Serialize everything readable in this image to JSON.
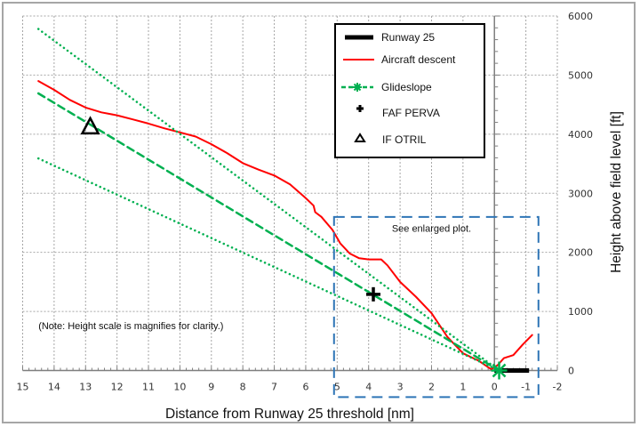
{
  "chart_data": {
    "type": "line",
    "title": "",
    "xlabel": "Distance from Runway 25 threshold [nm]",
    "ylabel": "Height above field level [ft]",
    "xlim": [
      15,
      -2
    ],
    "ylim": [
      0,
      6000
    ],
    "x_reversed": true,
    "y_axis_side": "right",
    "grid": true,
    "x_ticks": [
      15,
      14,
      13,
      12,
      11,
      10,
      9,
      8,
      7,
      6,
      5,
      4,
      3,
      2,
      1,
      0,
      -1,
      -2
    ],
    "x_tick_labels": [
      "15",
      "14",
      "13",
      "12",
      "11",
      "10",
      "9",
      "8",
      "7",
      "6",
      "5",
      "4",
      "3",
      "2",
      "1",
      "0",
      "-1",
      "-2"
    ],
    "y_ticks": [
      0,
      1000,
      2000,
      3000,
      4000,
      5000,
      6000
    ],
    "y_tick_labels": [
      "0",
      "1000",
      "2000",
      "3000",
      "4000",
      "5000",
      "6000"
    ],
    "legend": {
      "placement": "top-right",
      "entries": [
        {
          "label": "Runway 25",
          "style": "thick-black-line"
        },
        {
          "label": "Aircraft descent",
          "style": "red-line"
        },
        {
          "label": "Glideslope",
          "style": "green-dashed-asterisk"
        },
        {
          "label": "FAF PERVA",
          "style": "black-cross"
        },
        {
          "label": "IF OTRIL",
          "style": "black-triangle"
        }
      ]
    },
    "series": [
      {
        "name": "Runway 25",
        "color": "#000000",
        "x": [
          0,
          -1.1
        ],
        "y": [
          0,
          0
        ]
      },
      {
        "name": "Aircraft descent",
        "color": "#ff0000",
        "x": [
          14.5,
          14,
          13.5,
          13,
          12.5,
          12,
          11.5,
          11,
          10.5,
          10,
          9.5,
          9,
          8.5,
          8,
          7.5,
          7,
          6.5,
          6,
          5.75,
          5.7,
          5.5,
          5.15,
          4.9,
          4.6,
          4.3,
          4.0,
          3.6,
          3.4,
          3.0,
          2.5,
          2.0,
          1.5,
          1.0,
          0.5,
          0.1,
          -0.1,
          -0.3,
          -0.6,
          -0.9,
          -1.2
        ],
        "y": [
          4900,
          4750,
          4580,
          4450,
          4370,
          4320,
          4250,
          4180,
          4100,
          4030,
          3960,
          3830,
          3680,
          3510,
          3400,
          3300,
          3150,
          2920,
          2790,
          2680,
          2600,
          2380,
          2150,
          1980,
          1900,
          1880,
          1880,
          1780,
          1500,
          1250,
          970,
          570,
          290,
          165,
          20,
          90,
          210,
          260,
          440,
          600
        ]
      },
      {
        "name": "Glideslope",
        "color": "#00b050",
        "style": "dashed",
        "x": [
          14.5,
          -0.15
        ],
        "y": [
          4690,
          0
        ]
      },
      {
        "name": "Glideslope upper limit",
        "color": "#00b050",
        "style": "dotted",
        "x": [
          14.5,
          -0.15
        ],
        "y": [
          5780,
          0
        ]
      },
      {
        "name": "Glideslope lower limit",
        "color": "#00b050",
        "style": "dotted",
        "x": [
          14.5,
          -0.15
        ],
        "y": [
          3590,
          0
        ]
      }
    ],
    "markers": [
      {
        "name": "FAF PERVA",
        "shape": "cross",
        "x": 3.85,
        "y": 1290
      },
      {
        "name": "IF OTRIL",
        "shape": "triangle",
        "x": 12.85,
        "y": 4120
      },
      {
        "name": "Glideslope touchdown",
        "shape": "asterisk",
        "x": -0.15,
        "y": 0
      }
    ],
    "annotations": [
      {
        "text": "(Note: Height scale is magnifies for clarity.)",
        "x": 14.5,
        "y": 700
      },
      {
        "text": "See enlarged plot.",
        "x": 2.0,
        "y": 2350
      }
    ],
    "highlight_box": {
      "x_range": [
        5.1,
        -1.4
      ],
      "y_range": [
        -450,
        2600
      ],
      "color": "#2e75b6",
      "style": "dashed"
    }
  }
}
